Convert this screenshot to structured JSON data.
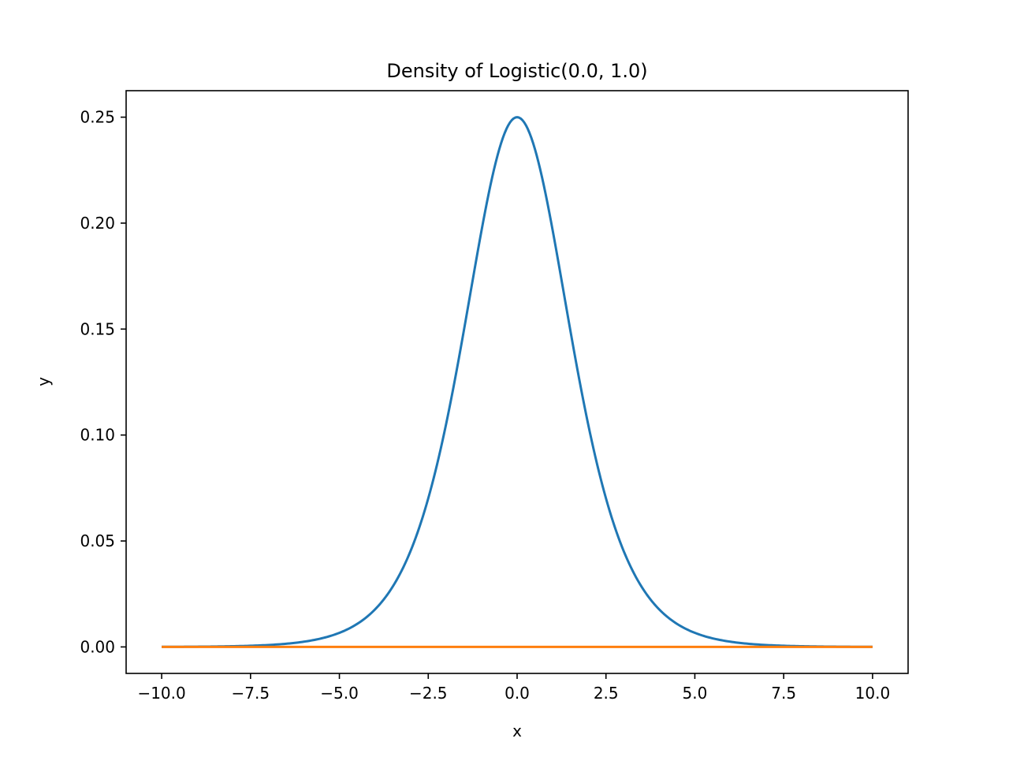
{
  "chart_data": {
    "type": "line",
    "title": "Density of Logistic(0.0, 1.0)",
    "xlabel": "x",
    "ylabel": "y",
    "xlim": [
      -11.0,
      11.0
    ],
    "ylim": [
      -0.0125,
      0.2625
    ],
    "xticks": [
      -10.0,
      -7.5,
      -5.0,
      -2.5,
      0.0,
      2.5,
      5.0,
      7.5,
      10.0
    ],
    "xtick_labels": [
      "−10.0",
      "−7.5",
      "−5.0",
      "−2.5",
      "0.0",
      "2.5",
      "5.0",
      "7.5",
      "10.0"
    ],
    "yticks": [
      0.0,
      0.05,
      0.1,
      0.15,
      0.2,
      0.25
    ],
    "ytick_labels": [
      "0.00",
      "0.05",
      "0.10",
      "0.15",
      "0.20",
      "0.25"
    ],
    "grid": false,
    "series": [
      {
        "color": "#1f77b4",
        "x": [
          -10.0,
          -9.0,
          -8.0,
          -7.0,
          -6.0,
          -5.0,
          -4.5,
          -4.0,
          -3.5,
          -3.0,
          -2.5,
          -2.0,
          -1.5,
          -1.0,
          -0.5,
          0.0,
          0.5,
          1.0,
          1.5,
          2.0,
          2.5,
          3.0,
          3.5,
          4.0,
          4.5,
          5.0,
          6.0,
          7.0,
          8.0,
          9.0,
          10.0
        ],
        "y": [
          5e-05,
          0.00012,
          0.00034,
          0.00091,
          0.00247,
          0.00665,
          0.01085,
          0.01766,
          0.02855,
          0.04518,
          0.0701,
          0.10499,
          0.1491,
          0.19661,
          0.235,
          0.25,
          0.235,
          0.19661,
          0.1491,
          0.10499,
          0.0701,
          0.04518,
          0.02855,
          0.01766,
          0.01085,
          0.00665,
          0.00247,
          0.00091,
          0.00034,
          0.00012,
          5e-05
        ]
      },
      {
        "color": "#ff7f0e",
        "x": [
          -10.0,
          10.0
        ],
        "y": [
          0.0,
          0.0
        ]
      }
    ]
  }
}
